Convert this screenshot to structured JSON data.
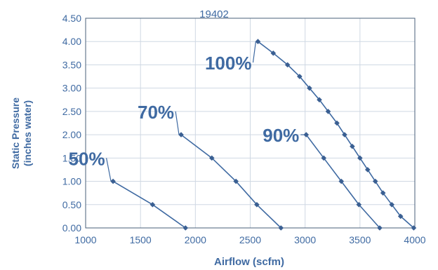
{
  "chart_data": {
    "type": "line",
    "title": "19402",
    "xlabel": "Airflow (scfm)",
    "ylabel_line1": "Static Pressure",
    "ylabel_line2": "(inches water)",
    "xlim": [
      1000,
      4000
    ],
    "ylim": [
      0,
      4.5
    ],
    "x_ticks": [
      "1000",
      "1500",
      "2000",
      "2500",
      "3000",
      "3500",
      "4000"
    ],
    "y_ticks": [
      "0.00",
      "0.50",
      "1.00",
      "1.50",
      "2.00",
      "2.50",
      "3.00",
      "3.50",
      "4.00",
      "4.50"
    ],
    "grid": true,
    "series": [
      {
        "name": "50%",
        "x": [
          1250,
          1610,
          1910
        ],
        "y": [
          1.0,
          0.5,
          0.0
        ]
      },
      {
        "name": "70%",
        "x": [
          1870,
          2150,
          2370,
          2560,
          2780
        ],
        "y": [
          2.0,
          1.5,
          1.0,
          0.5,
          0.0
        ]
      },
      {
        "name": "90%",
        "x": [
          3010,
          3170,
          3330,
          3490,
          3680
        ],
        "y": [
          2.0,
          1.5,
          1.0,
          0.5,
          0.0
        ]
      },
      {
        "name": "100%",
        "x": [
          2570,
          2710,
          2840,
          2950,
          3040,
          3130,
          3210,
          3290,
          3360,
          3430,
          3500,
          3570,
          3640,
          3710,
          3790,
          3870,
          3990
        ],
        "y": [
          4.0,
          3.75,
          3.5,
          3.25,
          3.0,
          2.75,
          2.5,
          2.25,
          2.0,
          1.75,
          1.5,
          1.25,
          1.0,
          0.75,
          0.5,
          0.25,
          0.0
        ]
      }
    ]
  },
  "colors": {
    "axis_text": "#3f6aa2",
    "line": "#3f6aa2",
    "marker": "#3a5f92",
    "grid": "#cfd8e3",
    "border": "#4a5f7a"
  }
}
